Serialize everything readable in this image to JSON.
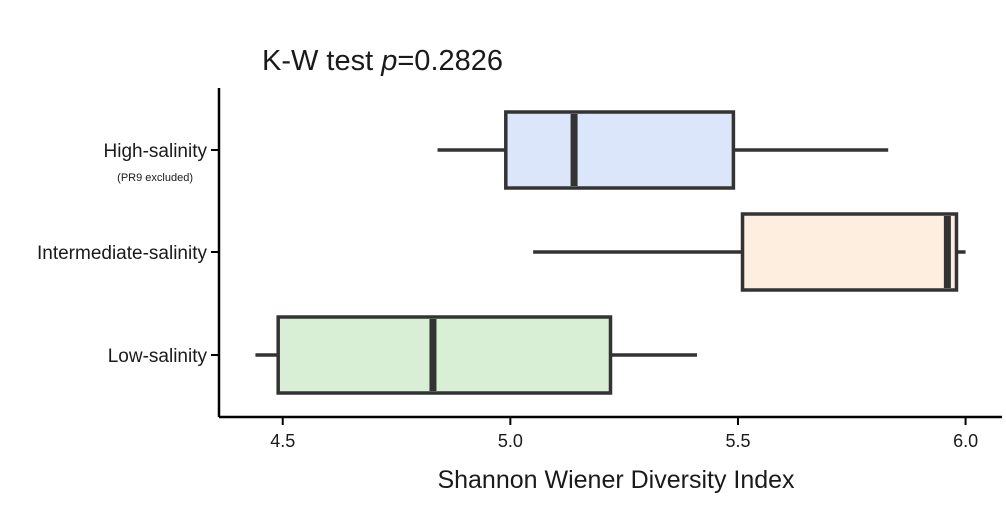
{
  "chart_data": {
    "type": "boxplot",
    "orientation": "horizontal",
    "title": {
      "prefix": "K-W test ",
      "italic": "p",
      "suffix": "=0.2826"
    },
    "xlabel": "Shannon Wiener Diversity Index",
    "ylabel": "",
    "xlim": [
      4.36,
      6.08
    ],
    "xticks": [
      4.5,
      5.0,
      5.5,
      6.0
    ],
    "xtick_labels": [
      "4.5",
      "5.0",
      "5.5",
      "6.0"
    ],
    "series": [
      {
        "name": "High-salinity",
        "sublabel": "(PR9 excluded)",
        "min": 4.84,
        "q1": 4.99,
        "median": 5.14,
        "q3": 5.49,
        "max": 5.83,
        "color": "#dbe6fb"
      },
      {
        "name": "Intermediate-salinity",
        "sublabel": "",
        "min": 5.05,
        "q1": 5.51,
        "median": 5.96,
        "q3": 5.98,
        "max": 6.0,
        "color": "#fdeee0"
      },
      {
        "name": "Low-salinity",
        "sublabel": "",
        "min": 4.44,
        "q1": 4.49,
        "median": 4.83,
        "q3": 5.22,
        "max": 5.41,
        "color": "#d8eed5"
      }
    ],
    "grid": false,
    "legend": "none"
  }
}
